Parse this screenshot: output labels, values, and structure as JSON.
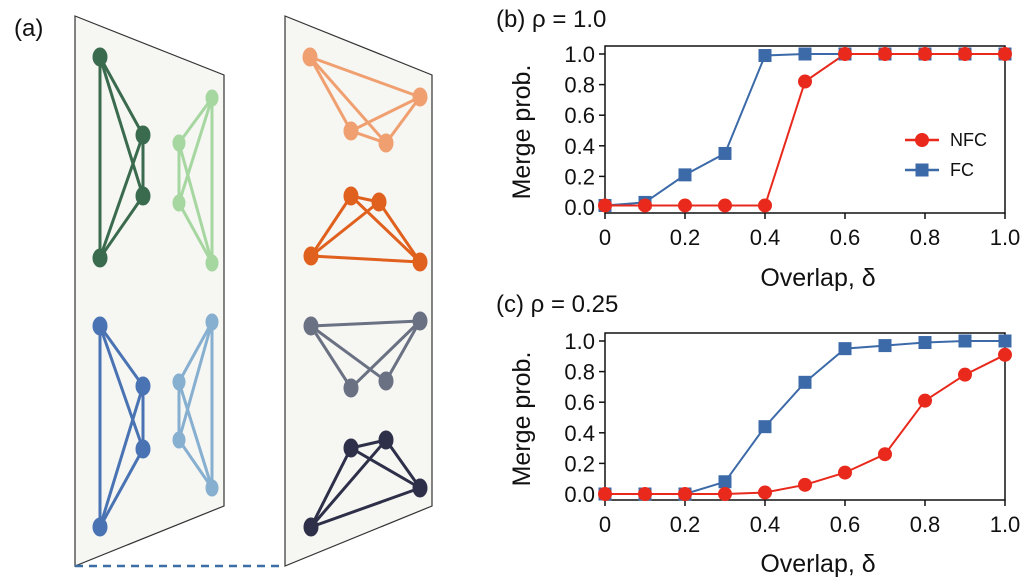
{
  "panel_a": {
    "label": "(a)",
    "plane_fill": "#f6f6f3",
    "left_plane_networks": [
      {
        "name": "dark-green",
        "color": "#3b6b4e"
      },
      {
        "name": "light-green",
        "color": "#a6d7a0"
      },
      {
        "name": "blue",
        "color": "#4a73b3"
      },
      {
        "name": "light-blue",
        "color": "#86afd0"
      }
    ],
    "right_plane_networks": [
      {
        "name": "light-orange",
        "color": "#f0a070"
      },
      {
        "name": "dark-orange",
        "color": "#e0601e"
      },
      {
        "name": "gray",
        "color": "#6a7183"
      },
      {
        "name": "dark-navy",
        "color": "#2e2f48"
      }
    ],
    "link_color": "#3a6ea5"
  },
  "chart_data": [
    {
      "type": "line",
      "panel": "(b)",
      "title": "(b) ρ = 1.0",
      "xlabel": "Overlap, δ",
      "ylabel": "Merge prob.",
      "xlim": [
        0,
        1
      ],
      "ylim": [
        0,
        1
      ],
      "xticks": [
        "0",
        "0.2",
        "0.4",
        "0.6",
        "0.8",
        "1.0"
      ],
      "yticks": [
        "0.0",
        "0.2",
        "0.4",
        "0.6",
        "0.8",
        "1.0"
      ],
      "grid": false,
      "legend": "right",
      "series": [
        {
          "name": "NFC",
          "color": "#e8291c",
          "marker": "circle",
          "x": [
            0,
            0.1,
            0.2,
            0.3,
            0.4,
            0.5,
            0.6,
            0.7,
            0.8,
            0.9,
            1.0
          ],
          "values": [
            0.01,
            0.01,
            0.01,
            0.01,
            0.01,
            0.82,
            1.0,
            1.0,
            1.0,
            1.0,
            1.0
          ]
        },
        {
          "name": "FC",
          "color": "#3c6aa8",
          "marker": "square",
          "x": [
            0,
            0.1,
            0.2,
            0.3,
            0.4,
            0.5,
            0.6,
            0.7,
            0.8,
            0.9,
            1.0
          ],
          "values": [
            0.01,
            0.03,
            0.21,
            0.35,
            0.99,
            1.0,
            1.0,
            1.0,
            1.0,
            1.0,
            1.0
          ]
        }
      ]
    },
    {
      "type": "line",
      "panel": "(c)",
      "title": "(c) ρ = 0.25",
      "xlabel": "Overlap, δ",
      "ylabel": "Merge prob.",
      "xlim": [
        0,
        1
      ],
      "ylim": [
        0,
        1
      ],
      "xticks": [
        "0",
        "0.2",
        "0.4",
        "0.6",
        "0.8",
        "1.0"
      ],
      "yticks": [
        "0.0",
        "0.2",
        "0.4",
        "0.6",
        "0.8",
        "1.0"
      ],
      "grid": false,
      "series": [
        {
          "name": "NFC",
          "color": "#e8291c",
          "marker": "circle",
          "x": [
            0,
            0.1,
            0.2,
            0.3,
            0.4,
            0.5,
            0.6,
            0.7,
            0.8,
            0.9,
            1.0
          ],
          "values": [
            0.0,
            0.0,
            0.0,
            0.0,
            0.01,
            0.06,
            0.14,
            0.26,
            0.61,
            0.78,
            0.91
          ]
        },
        {
          "name": "FC",
          "color": "#3c6aa8",
          "marker": "square",
          "x": [
            0,
            0.1,
            0.2,
            0.3,
            0.4,
            0.5,
            0.6,
            0.7,
            0.8,
            0.9,
            1.0
          ],
          "values": [
            0.0,
            0.0,
            0.0,
            0.08,
            0.44,
            0.73,
            0.95,
            0.97,
            0.99,
            1.0,
            1.0
          ]
        }
      ]
    }
  ]
}
